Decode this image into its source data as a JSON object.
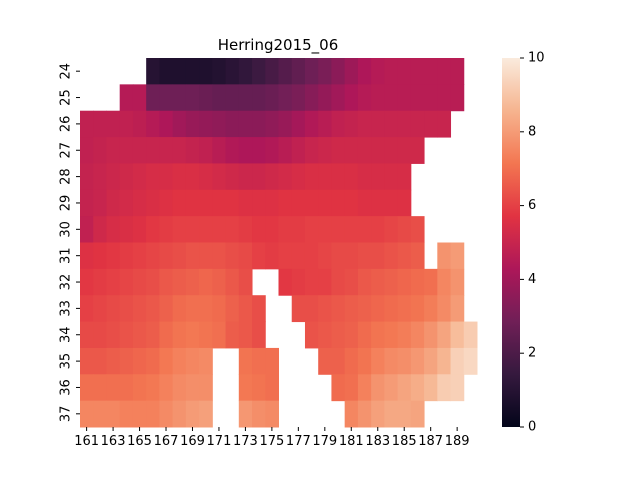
{
  "chart_data": {
    "type": "heatmap",
    "title": "Herring2015_06",
    "xlabel": "",
    "ylabel": "",
    "x_categories": [
      161,
      162,
      163,
      164,
      165,
      166,
      167,
      168,
      169,
      170,
      171,
      172,
      173,
      174,
      175,
      176,
      177,
      178,
      179,
      180,
      181,
      182,
      183,
      184,
      185,
      186,
      187,
      188,
      189,
      190
    ],
    "x_tick_labels": [
      "161",
      "163",
      "165",
      "167",
      "169",
      "171",
      "173",
      "175",
      "177",
      "179",
      "181",
      "183",
      "185",
      "187",
      "189"
    ],
    "y_categories": [
      24,
      25,
      26,
      27,
      28,
      29,
      30,
      31,
      32,
      33,
      34,
      35,
      36,
      37
    ],
    "y_tick_labels": [
      "24",
      "25",
      "26",
      "27",
      "28",
      "29",
      "30",
      "31",
      "32",
      "33",
      "34",
      "35",
      "36",
      "37"
    ],
    "colorbar": {
      "min": 0,
      "max": 10,
      "ticks": [
        "0",
        "2",
        "4",
        "6",
        "8",
        "10"
      ],
      "colormap": "rocket",
      "stops": [
        "#03051a",
        "#35193e",
        "#701f57",
        "#ad1759",
        "#e13342",
        "#f37651",
        "#f6b48f",
        "#faebdd"
      ]
    },
    "missing_color": "#ffffff",
    "values": [
      [
        null,
        null,
        null,
        null,
        null,
        1.0,
        0.8,
        0.8,
        0.8,
        0.8,
        0.9,
        1.1,
        1.3,
        1.6,
        1.9,
        2.2,
        2.5,
        2.8,
        3.1,
        3.5,
        3.9,
        4.3,
        4.5,
        4.6,
        4.6,
        4.6,
        4.6,
        4.6,
        4.6,
        null
      ],
      [
        null,
        null,
        null,
        4.5,
        4.5,
        2.8,
        2.8,
        2.8,
        2.8,
        2.7,
        2.6,
        2.6,
        2.6,
        2.6,
        2.7,
        2.9,
        3.1,
        3.4,
        3.7,
        4.0,
        4.3,
        4.5,
        4.6,
        4.6,
        4.6,
        4.6,
        4.6,
        4.6,
        4.6,
        null
      ],
      [
        4.8,
        4.8,
        4.8,
        4.8,
        4.7,
        4.5,
        4.3,
        4.0,
        3.8,
        3.7,
        3.6,
        3.5,
        3.5,
        3.5,
        3.6,
        3.8,
        4.1,
        4.4,
        4.6,
        4.8,
        4.9,
        5.0,
        5.0,
        5.0,
        5.0,
        5.0,
        5.0,
        5.0,
        null,
        null
      ],
      [
        4.8,
        4.9,
        5.0,
        5.0,
        5.0,
        5.0,
        5.0,
        5.0,
        4.9,
        4.8,
        4.6,
        4.4,
        4.3,
        4.3,
        4.4,
        4.6,
        4.8,
        5.0,
        5.1,
        5.2,
        5.2,
        5.2,
        5.2,
        5.2,
        5.2,
        5.2,
        null,
        null,
        null,
        null
      ],
      [
        4.9,
        5.0,
        5.1,
        5.2,
        5.3,
        5.4,
        5.4,
        5.5,
        5.5,
        5.4,
        5.3,
        5.2,
        5.1,
        5.1,
        5.2,
        5.3,
        5.4,
        5.5,
        5.5,
        5.5,
        5.5,
        5.4,
        5.4,
        5.4,
        5.4,
        null,
        null,
        null,
        null,
        null
      ],
      [
        4.9,
        5.0,
        5.2,
        5.3,
        5.4,
        5.5,
        5.6,
        5.7,
        5.7,
        5.7,
        5.7,
        5.7,
        5.6,
        5.6,
        5.6,
        5.7,
        5.7,
        5.7,
        5.7,
        5.7,
        5.7,
        5.6,
        5.6,
        5.6,
        5.6,
        null,
        null,
        null,
        null,
        null
      ],
      [
        4.8,
        5.2,
        5.4,
        5.5,
        5.6,
        5.8,
        5.9,
        6.0,
        6.0,
        6.0,
        6.0,
        6.0,
        5.9,
        5.8,
        5.8,
        5.9,
        5.9,
        6.0,
        6.0,
        6.0,
        6.0,
        6.0,
        6.0,
        6.1,
        6.2,
        6.3,
        null,
        null,
        null,
        null
      ],
      [
        5.6,
        5.7,
        5.8,
        5.9,
        6.0,
        6.1,
        6.2,
        6.3,
        6.4,
        6.4,
        6.4,
        6.3,
        6.2,
        6.0,
        5.9,
        6.0,
        6.0,
        6.0,
        6.1,
        6.2,
        6.2,
        6.3,
        6.3,
        6.4,
        6.5,
        6.6,
        null,
        7.8,
        8.0,
        null
      ],
      [
        5.8,
        5.9,
        6.0,
        6.1,
        6.2,
        6.3,
        6.5,
        6.6,
        6.7,
        6.8,
        6.7,
        6.5,
        6.3,
        null,
        null,
        5.8,
        5.9,
        6.0,
        6.0,
        6.2,
        6.3,
        6.5,
        6.6,
        6.7,
        6.8,
        6.9,
        7.0,
        7.5,
        7.8,
        null
      ],
      [
        6.0,
        6.1,
        6.2,
        6.3,
        6.4,
        6.5,
        6.7,
        6.9,
        7.0,
        7.0,
        6.9,
        6.7,
        6.5,
        6.3,
        null,
        null,
        6.3,
        6.3,
        6.4,
        6.5,
        6.6,
        6.7,
        6.8,
        6.9,
        7.0,
        7.1,
        7.3,
        7.6,
        8.0,
        null
      ],
      [
        6.2,
        6.2,
        6.3,
        6.4,
        6.5,
        6.6,
        6.9,
        7.1,
        7.2,
        7.1,
        7.0,
        6.6,
        6.5,
        6.3,
        null,
        null,
        null,
        6.4,
        6.5,
        6.6,
        6.7,
        6.9,
        7.1,
        7.2,
        7.3,
        7.5,
        7.8,
        8.2,
        8.8,
        9.2
      ],
      [
        6.5,
        6.5,
        6.6,
        6.7,
        6.8,
        6.9,
        7.2,
        7.4,
        7.5,
        7.6,
        null,
        null,
        7.1,
        7.0,
        7.0,
        null,
        null,
        null,
        6.7,
        6.7,
        6.9,
        7.1,
        7.4,
        7.6,
        7.7,
        7.9,
        8.2,
        8.6,
        9.3,
        9.5
      ],
      [
        7.0,
        7.0,
        7.0,
        7.0,
        7.1,
        7.2,
        7.4,
        7.6,
        7.7,
        7.7,
        null,
        null,
        7.2,
        7.1,
        7.0,
        null,
        null,
        null,
        null,
        6.9,
        7.0,
        7.4,
        7.8,
        8.0,
        8.2,
        8.4,
        8.7,
        9.2,
        9.3,
        null
      ],
      [
        7.5,
        7.5,
        7.5,
        7.4,
        7.4,
        7.4,
        7.6,
        7.8,
        8.0,
        8.1,
        null,
        null,
        7.9,
        7.7,
        7.6,
        null,
        null,
        null,
        null,
        null,
        7.5,
        7.8,
        8.1,
        8.3,
        8.3,
        8.2,
        null,
        null,
        null,
        null
      ]
    ]
  }
}
